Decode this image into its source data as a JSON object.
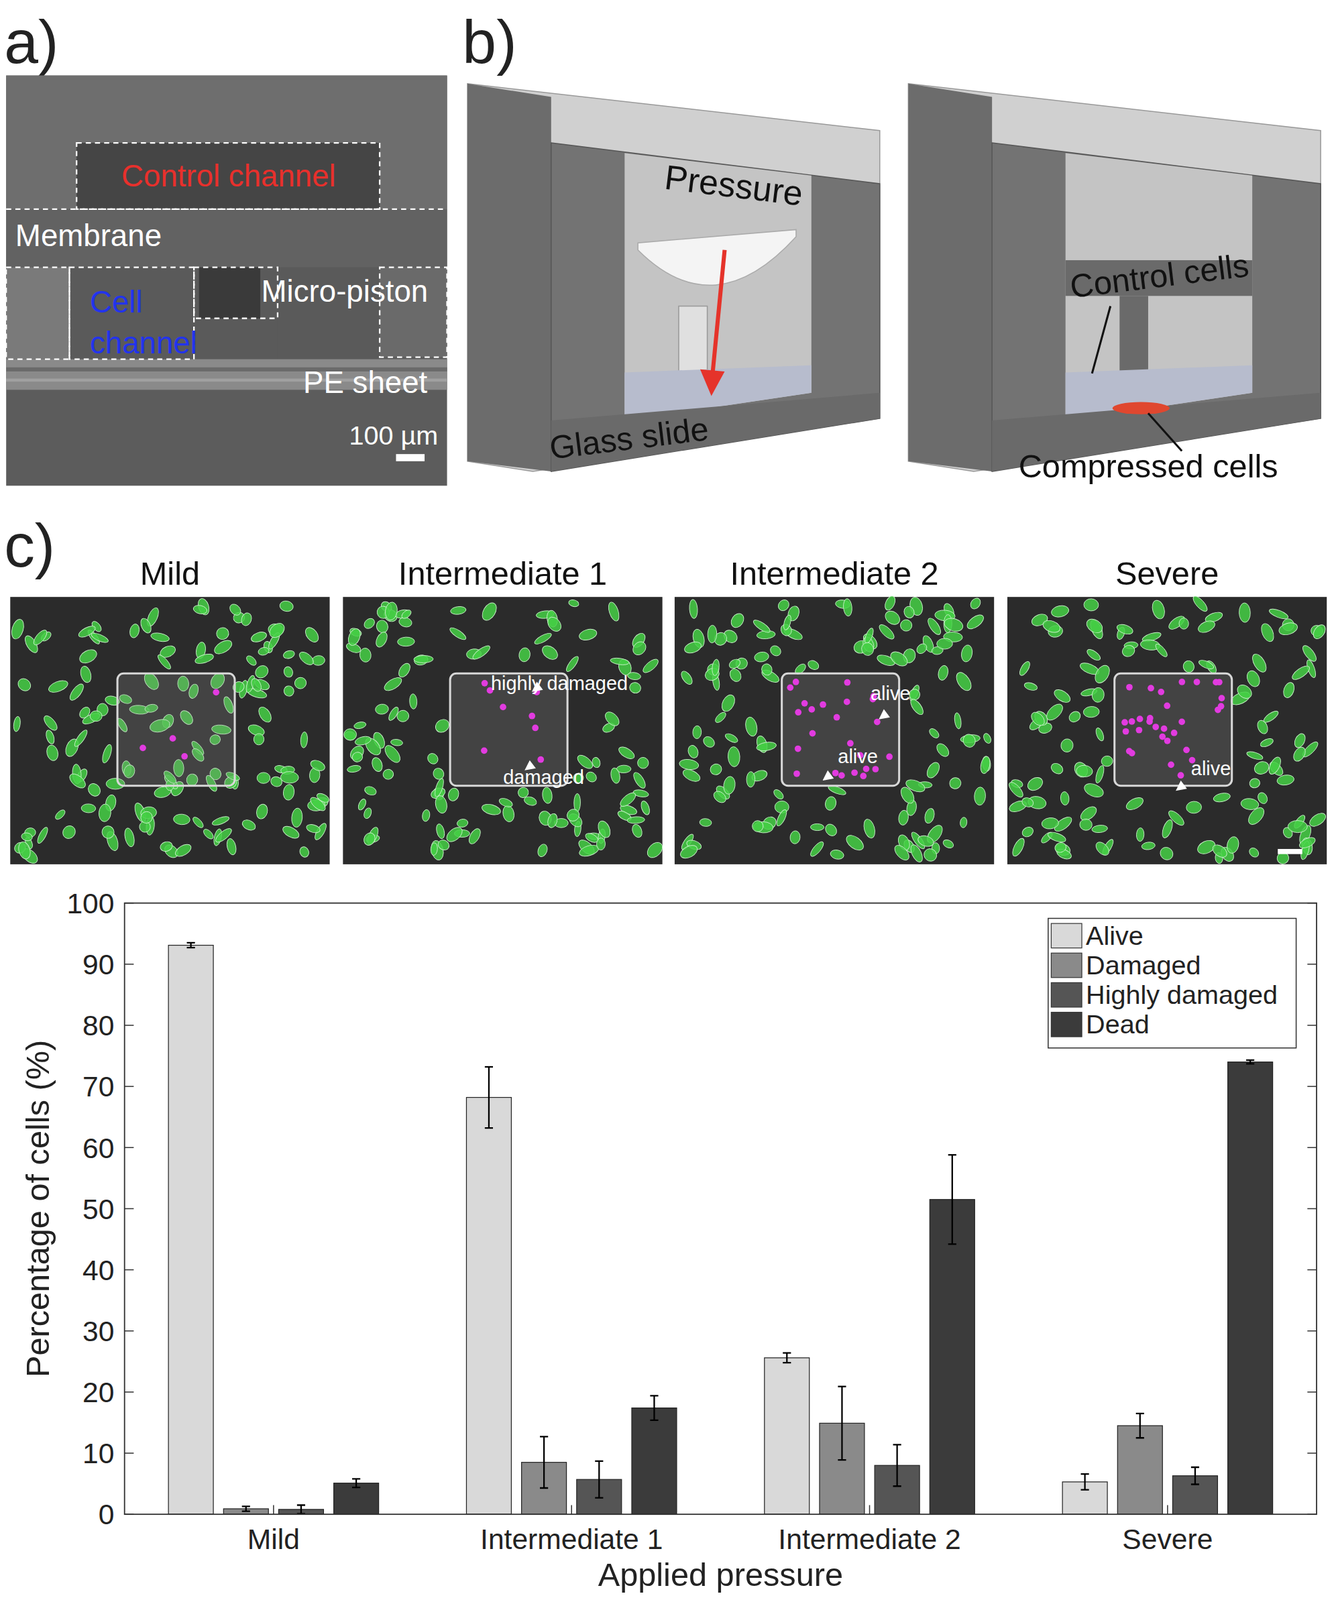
{
  "panels": {
    "a": {
      "label": "a)",
      "texts": {
        "control_channel": "Control channel",
        "membrane": "Membrane",
        "cell_channel": [
          "Cell",
          "channel"
        ],
        "micro_piston": "Micro-piston",
        "pe_sheet": "PE sheet",
        "scale_bar": "100 µm"
      }
    },
    "b": {
      "label": "b)",
      "texts": {
        "pressure": "Pressure",
        "glass_slide": "Glass slide",
        "control_cells": "Control cells",
        "compressed_cells": "Compressed cells"
      }
    },
    "c": {
      "label": "c)",
      "images": [
        {
          "title": "Mild",
          "annotations": []
        },
        {
          "title": "Intermediate 1",
          "annotations": [
            "highly damaged",
            "damaged"
          ]
        },
        {
          "title": "Intermediate 2",
          "annotations": [
            "alive",
            "alive"
          ]
        },
        {
          "title": "Severe",
          "annotations": [
            "alive"
          ]
        }
      ]
    }
  },
  "chart_data": {
    "type": "bar",
    "categories": [
      "Mild",
      "Intermediate 1",
      "Intermediate 2",
      "Severe"
    ],
    "series": [
      {
        "name": "Alive",
        "color": "#d9d9d9",
        "values": [
          93.1,
          68.2,
          25.6,
          5.3
        ],
        "errors": [
          0.4,
          5.0,
          0.8,
          1.3
        ]
      },
      {
        "name": "Damaged",
        "color": "#8a8a8a",
        "values": [
          0.9,
          8.5,
          14.9,
          14.5
        ],
        "errors": [
          0.4,
          4.2,
          6.0,
          2.0
        ]
      },
      {
        "name": "Highly damaged",
        "color": "#555555",
        "values": [
          0.8,
          5.7,
          8.0,
          6.3
        ],
        "errors": [
          0.7,
          3.0,
          3.4,
          1.4
        ]
      },
      {
        "name": "Dead",
        "color": "#3b3b3b",
        "values": [
          5.1,
          17.4,
          51.5,
          74.0
        ],
        "errors": [
          0.7,
          2.0,
          7.3,
          0.3
        ]
      }
    ],
    "x_label": "Applied pressure",
    "y_label": "Percentage of cells (%)",
    "ylim": [
      0,
      100
    ],
    "yticks": [
      0,
      10,
      20,
      30,
      40,
      50,
      60,
      70,
      80,
      90,
      100
    ],
    "grid": false,
    "legend": "top-right"
  }
}
